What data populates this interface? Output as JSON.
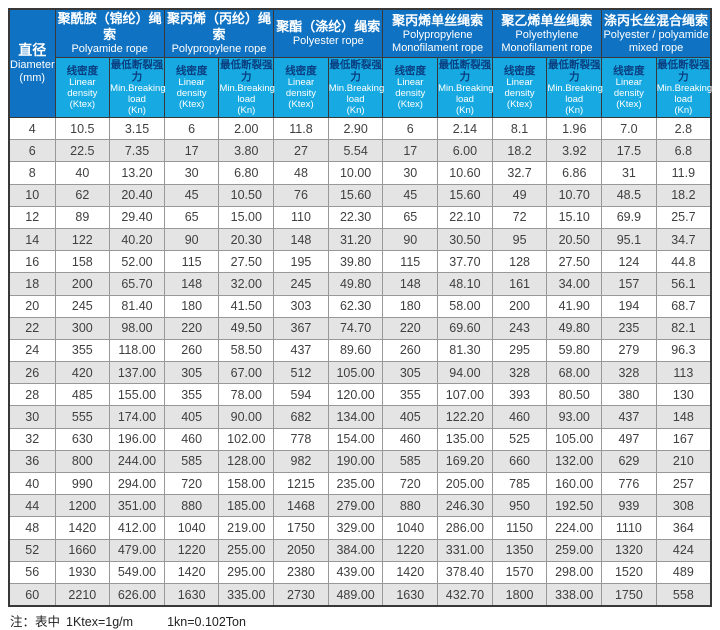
{
  "table": {
    "diameter_header": {
      "cn": "直径",
      "en": "Diameter",
      "unit": "(mm)"
    },
    "groups": [
      {
        "cn": "聚酰胺（锦纶）绳索",
        "en": "Polyamide rope"
      },
      {
        "cn": "聚丙烯（丙纶）绳索",
        "en": "Polypropylene rope"
      },
      {
        "cn": "聚酯（涤纶）绳索",
        "en": "Polyester rope"
      },
      {
        "cn": "聚丙烯单丝绳索",
        "en": "Polypropylene Monofilament rope"
      },
      {
        "cn": "聚乙烯单丝绳索",
        "en": "Polyethylene Monofilament rope"
      },
      {
        "cn": "涤丙长丝混合绳索",
        "en": "Polyester / polyamide mixed rope"
      }
    ],
    "subcols": {
      "linear_density": {
        "cn": "线密度",
        "en": "Linear density",
        "unit": "(Ktex)"
      },
      "breaking_load": {
        "cn": "最低断裂强力",
        "en": "Min.Breaking",
        "en2": "load",
        "unit": "(Kn)"
      }
    },
    "rows": [
      [
        "4",
        "10.5",
        "3.15",
        "6",
        "2.00",
        "11.8",
        "2.90",
        "6",
        "2.14",
        "8.1",
        "1.96",
        "7.0",
        "2.8"
      ],
      [
        "6",
        "22.5",
        "7.35",
        "17",
        "3.80",
        "27",
        "5.54",
        "17",
        "6.00",
        "18.2",
        "3.92",
        "17.5",
        "6.8"
      ],
      [
        "8",
        "40",
        "13.20",
        "30",
        "6.80",
        "48",
        "10.00",
        "30",
        "10.60",
        "32.7",
        "6.86",
        "31",
        "11.9"
      ],
      [
        "10",
        "62",
        "20.40",
        "45",
        "10.50",
        "76",
        "15.60",
        "45",
        "15.60",
        "49",
        "10.70",
        "48.5",
        "18.2"
      ],
      [
        "12",
        "89",
        "29.40",
        "65",
        "15.00",
        "110",
        "22.30",
        "65",
        "22.10",
        "72",
        "15.10",
        "69.9",
        "25.7"
      ],
      [
        "14",
        "122",
        "40.20",
        "90",
        "20.30",
        "148",
        "31.20",
        "90",
        "30.50",
        "95",
        "20.50",
        "95.1",
        "34.7"
      ],
      [
        "16",
        "158",
        "52.00",
        "115",
        "27.50",
        "195",
        "39.80",
        "115",
        "37.70",
        "128",
        "27.50",
        "124",
        "44.8"
      ],
      [
        "18",
        "200",
        "65.70",
        "148",
        "32.00",
        "245",
        "49.80",
        "148",
        "48.10",
        "161",
        "34.00",
        "157",
        "56.1"
      ],
      [
        "20",
        "245",
        "81.40",
        "180",
        "41.50",
        "303",
        "62.30",
        "180",
        "58.00",
        "200",
        "41.90",
        "194",
        "68.7"
      ],
      [
        "22",
        "300",
        "98.00",
        "220",
        "49.50",
        "367",
        "74.70",
        "220",
        "69.60",
        "243",
        "49.80",
        "235",
        "82.1"
      ],
      [
        "24",
        "355",
        "118.00",
        "260",
        "58.50",
        "437",
        "89.60",
        "260",
        "81.30",
        "295",
        "59.80",
        "279",
        "96.3"
      ],
      [
        "26",
        "420",
        "137.00",
        "305",
        "67.00",
        "512",
        "105.00",
        "305",
        "94.00",
        "328",
        "68.00",
        "328",
        "113"
      ],
      [
        "28",
        "485",
        "155.00",
        "355",
        "78.00",
        "594",
        "120.00",
        "355",
        "107.00",
        "393",
        "80.50",
        "380",
        "130"
      ],
      [
        "30",
        "555",
        "174.00",
        "405",
        "90.00",
        "682",
        "134.00",
        "405",
        "122.20",
        "460",
        "93.00",
        "437",
        "148"
      ],
      [
        "32",
        "630",
        "196.00",
        "460",
        "102.00",
        "778",
        "154.00",
        "460",
        "135.00",
        "525",
        "105.00",
        "497",
        "167"
      ],
      [
        "36",
        "800",
        "244.00",
        "585",
        "128.00",
        "982",
        "190.00",
        "585",
        "169.20",
        "660",
        "132.00",
        "629",
        "210"
      ],
      [
        "40",
        "990",
        "294.00",
        "720",
        "158.00",
        "1215",
        "235.00",
        "720",
        "205.00",
        "785",
        "160.00",
        "776",
        "257"
      ],
      [
        "44",
        "1200",
        "351.00",
        "880",
        "185.00",
        "1468",
        "279.00",
        "880",
        "246.30",
        "950",
        "192.50",
        "939",
        "308"
      ],
      [
        "48",
        "1420",
        "412.00",
        "1040",
        "219.00",
        "1750",
        "329.00",
        "1040",
        "286.00",
        "1150",
        "224.00",
        "1110",
        "364"
      ],
      [
        "52",
        "1660",
        "479.00",
        "1220",
        "255.00",
        "2050",
        "384.00",
        "1220",
        "331.00",
        "1350",
        "259.00",
        "1320",
        "424"
      ],
      [
        "56",
        "1930",
        "549.00",
        "1420",
        "295.00",
        "2380",
        "439.00",
        "1420",
        "378.40",
        "1570",
        "298.00",
        "1520",
        "489"
      ],
      [
        "60",
        "2210",
        "626.00",
        "1630",
        "335.00",
        "2730",
        "489.00",
        "1630",
        "432.70",
        "1800",
        "338.00",
        "1750",
        "558"
      ]
    ]
  },
  "note": {
    "label": "注：表中",
    "eq1": "1Ktex=1g/m",
    "eq2": "1kn=0.102Ton"
  },
  "colors": {
    "header_blue": "#0f72c3",
    "subheader_cyan": "#17aae2",
    "subheader_cn_text": "#0a3e80",
    "alt_row_gray": "#e4e4e4",
    "grid_line": "#989898",
    "outer_border": "#383838"
  }
}
